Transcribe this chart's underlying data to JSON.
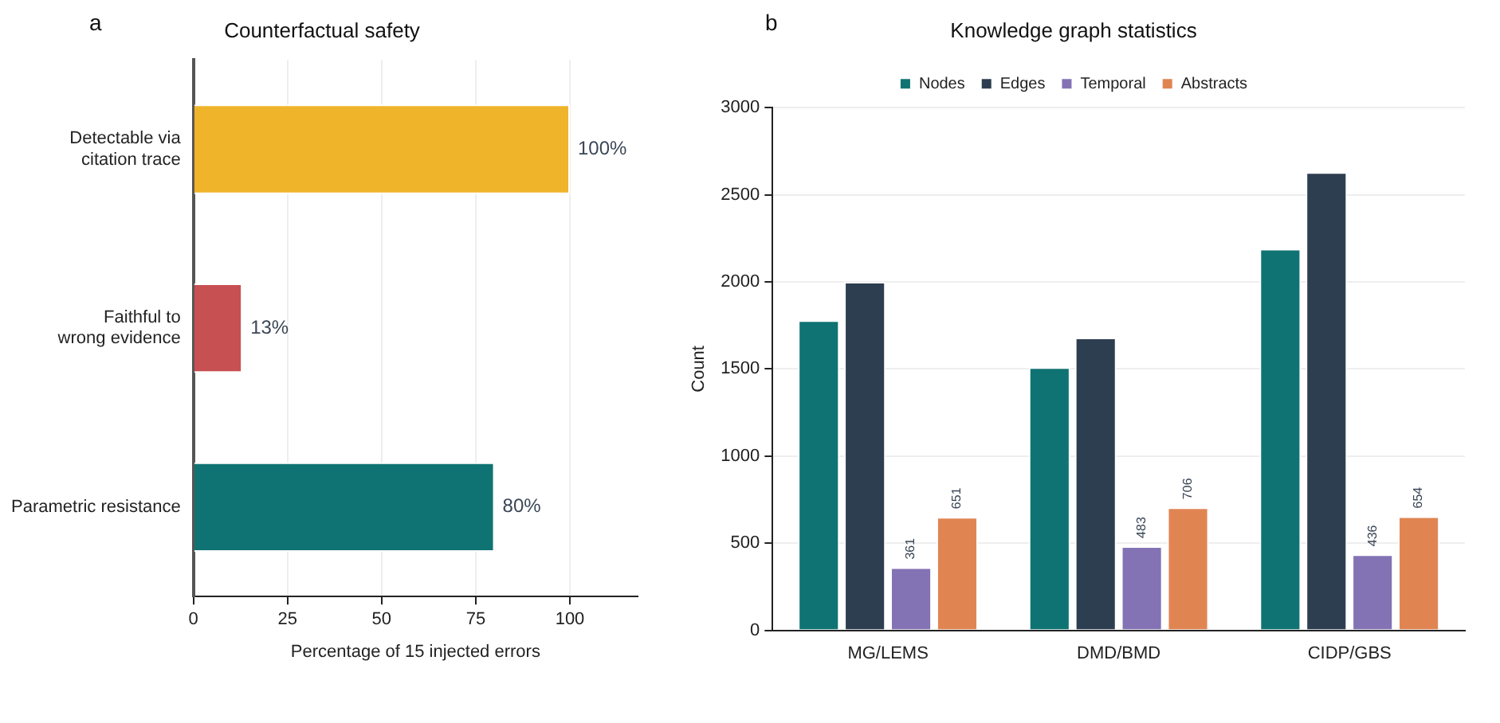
{
  "chart_data": [
    {
      "type": "bar",
      "orientation": "horizontal",
      "title": "Counterfactual safety",
      "xlabel": "Percentage of 15 injected errors",
      "annotations": [
        "a"
      ],
      "categories": [
        "Detectable via citation trace",
        "Faithful to wrong evidence",
        "Parametric resistance"
      ],
      "values": [
        100,
        13,
        80
      ],
      "colors": [
        "#efb42a",
        "#c75052",
        "#107373"
      ],
      "value_labels": [
        "100%",
        "13%",
        "80%"
      ],
      "xlim": [
        0,
        118
      ],
      "xticks": [
        0,
        25,
        50,
        75,
        100
      ],
      "grid": "x",
      "legend": false
    },
    {
      "type": "bar",
      "title": "Knowledge graph statistics",
      "ylabel": "Count",
      "annotations": [
        "b"
      ],
      "categories": [
        "MG/LEMS",
        "DMD/BMD",
        "CIDP/GBS"
      ],
      "series": [
        {
          "name": "Nodes",
          "color": "#107373",
          "values": [
            1780,
            1510,
            2190
          ]
        },
        {
          "name": "Edges",
          "color": "#2d3e50",
          "values": [
            2000,
            1680,
            2630
          ]
        },
        {
          "name": "Temporal",
          "color": "#8372b4",
          "values": [
            361,
            483,
            436
          ],
          "value_labels": [
            "361",
            "483",
            "436"
          ]
        },
        {
          "name": "Abstracts",
          "color": "#e08552",
          "values": [
            651,
            706,
            654
          ],
          "value_labels": [
            "651",
            "706",
            "654"
          ]
        }
      ],
      "ylim": [
        0,
        3000
      ],
      "yticks": [
        0,
        500,
        1000,
        1500,
        2000,
        2500,
        3000
      ],
      "grid": "y",
      "legend": "top"
    }
  ]
}
